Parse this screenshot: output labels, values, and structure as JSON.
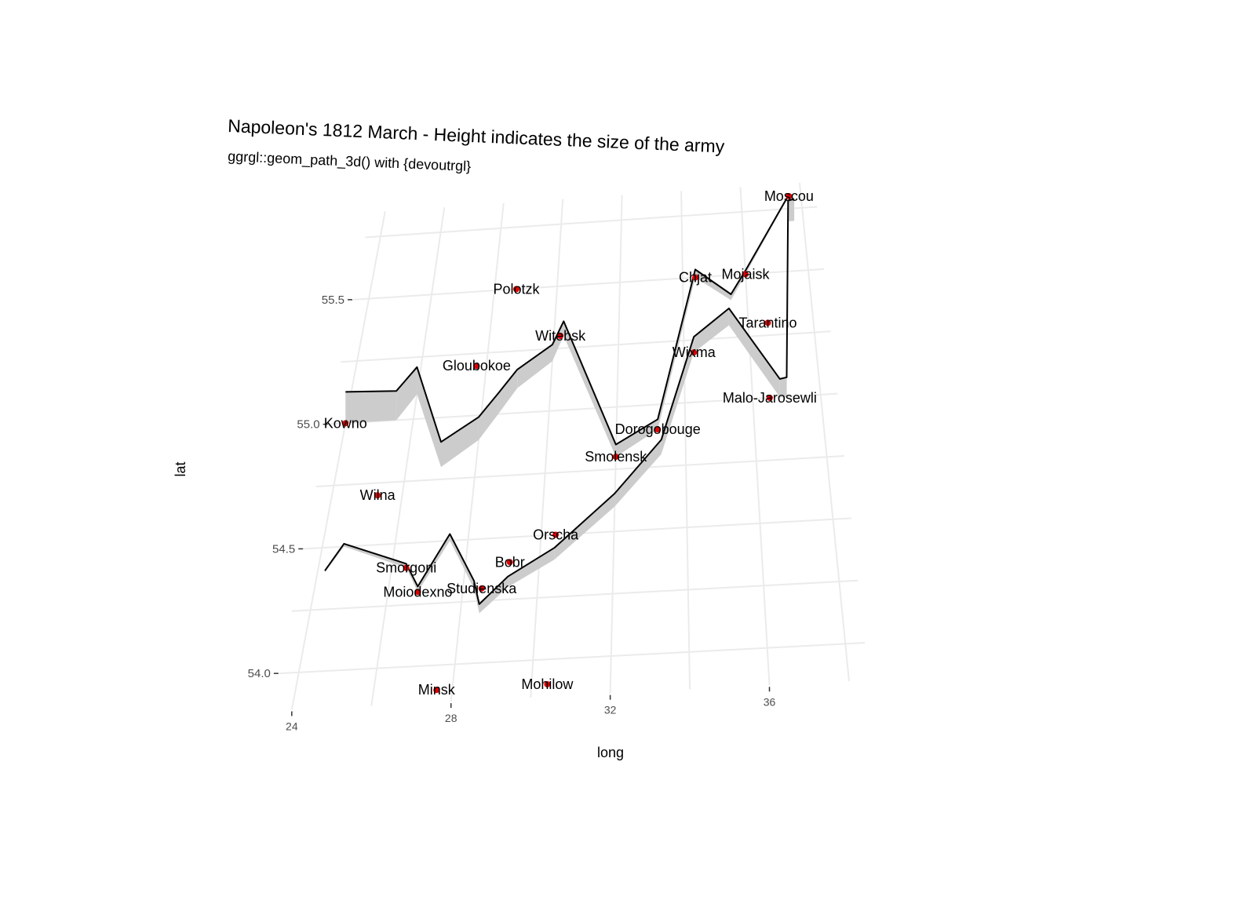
{
  "chart_data": {
    "type": "line",
    "title": "Napoleon's 1812 March - Height indicates the size of the army",
    "subtitle": "ggrgl::geom_path_3d() with {devoutrgl}",
    "xlabel": "long",
    "ylabel": "lat",
    "x_ticks": [
      "24",
      "28",
      "32",
      "36"
    ],
    "y_ticks": [
      "54.0",
      "54.5",
      "55.0",
      "55.5"
    ],
    "xlim": [
      23.5,
      38.5
    ],
    "ylim": [
      53.85,
      55.85
    ],
    "grid": true,
    "series": [
      {
        "direction": "advance",
        "points": [
          [
            24.0,
            55.0
          ],
          [
            25.5,
            55.0
          ],
          [
            26.0,
            55.1
          ],
          [
            27.0,
            54.8
          ],
          [
            28.0,
            54.9
          ],
          [
            28.5,
            55.0
          ],
          [
            29.0,
            55.1
          ],
          [
            30.0,
            55.2
          ],
          [
            30.3,
            55.3
          ],
          [
            32.0,
            54.8
          ],
          [
            33.2,
            54.9
          ],
          [
            34.4,
            55.5
          ],
          [
            35.5,
            55.4
          ],
          [
            36.0,
            55.5
          ],
          [
            37.6,
            55.8
          ]
        ]
      },
      {
        "direction": "retreat",
        "points": [
          [
            37.7,
            55.7
          ],
          [
            37.5,
            55.7
          ],
          [
            37.0,
            55.0
          ],
          [
            36.8,
            55.0
          ],
          [
            35.4,
            55.3
          ],
          [
            34.3,
            55.2
          ],
          [
            33.3,
            54.8
          ],
          [
            32.0,
            54.6
          ],
          [
            30.4,
            54.4
          ],
          [
            29.2,
            54.3
          ],
          [
            28.5,
            54.2
          ],
          [
            28.3,
            54.3
          ],
          [
            27.5,
            54.5
          ],
          [
            26.8,
            54.3
          ],
          [
            26.4,
            54.4
          ],
          [
            24.6,
            54.5
          ],
          [
            24.2,
            54.4
          ]
        ]
      }
    ],
    "cities": [
      {
        "name": "Kowno",
        "long": 24.0,
        "lat": 55.0
      },
      {
        "name": "Wilna",
        "long": 25.3,
        "lat": 54.7
      },
      {
        "name": "Smorgoni",
        "long": 26.4,
        "lat": 54.4
      },
      {
        "name": "Moiodexno",
        "long": 26.8,
        "lat": 54.3
      },
      {
        "name": "Gloubokoe",
        "long": 27.7,
        "lat": 55.2
      },
      {
        "name": "Minsk",
        "long": 27.6,
        "lat": 53.9
      },
      {
        "name": "Studienska",
        "long": 28.5,
        "lat": 54.3
      },
      {
        "name": "Polotzk",
        "long": 28.7,
        "lat": 55.5
      },
      {
        "name": "Bobr",
        "long": 29.2,
        "lat": 54.4
      },
      {
        "name": "Witebsk",
        "long": 30.2,
        "lat": 55.3
      },
      {
        "name": "Orscha",
        "long": 30.4,
        "lat": 54.5
      },
      {
        "name": "Mohilow",
        "long": 30.4,
        "lat": 53.9
      },
      {
        "name": "Smolensk",
        "long": 32.0,
        "lat": 54.8
      },
      {
        "name": "Dorogobouge",
        "long": 33.2,
        "lat": 54.9
      },
      {
        "name": "Wixma",
        "long": 34.3,
        "lat": 55.2
      },
      {
        "name": "Chjat",
        "long": 34.4,
        "lat": 55.5
      },
      {
        "name": "Mojaisk",
        "long": 36.0,
        "lat": 55.5
      },
      {
        "name": "Moscou",
        "long": 37.6,
        "lat": 55.8
      },
      {
        "name": "Tarantino",
        "long": 36.6,
        "lat": 55.3
      },
      {
        "name": "Malo-Jarosewli",
        "long": 36.5,
        "lat": 55.0
      }
    ]
  }
}
